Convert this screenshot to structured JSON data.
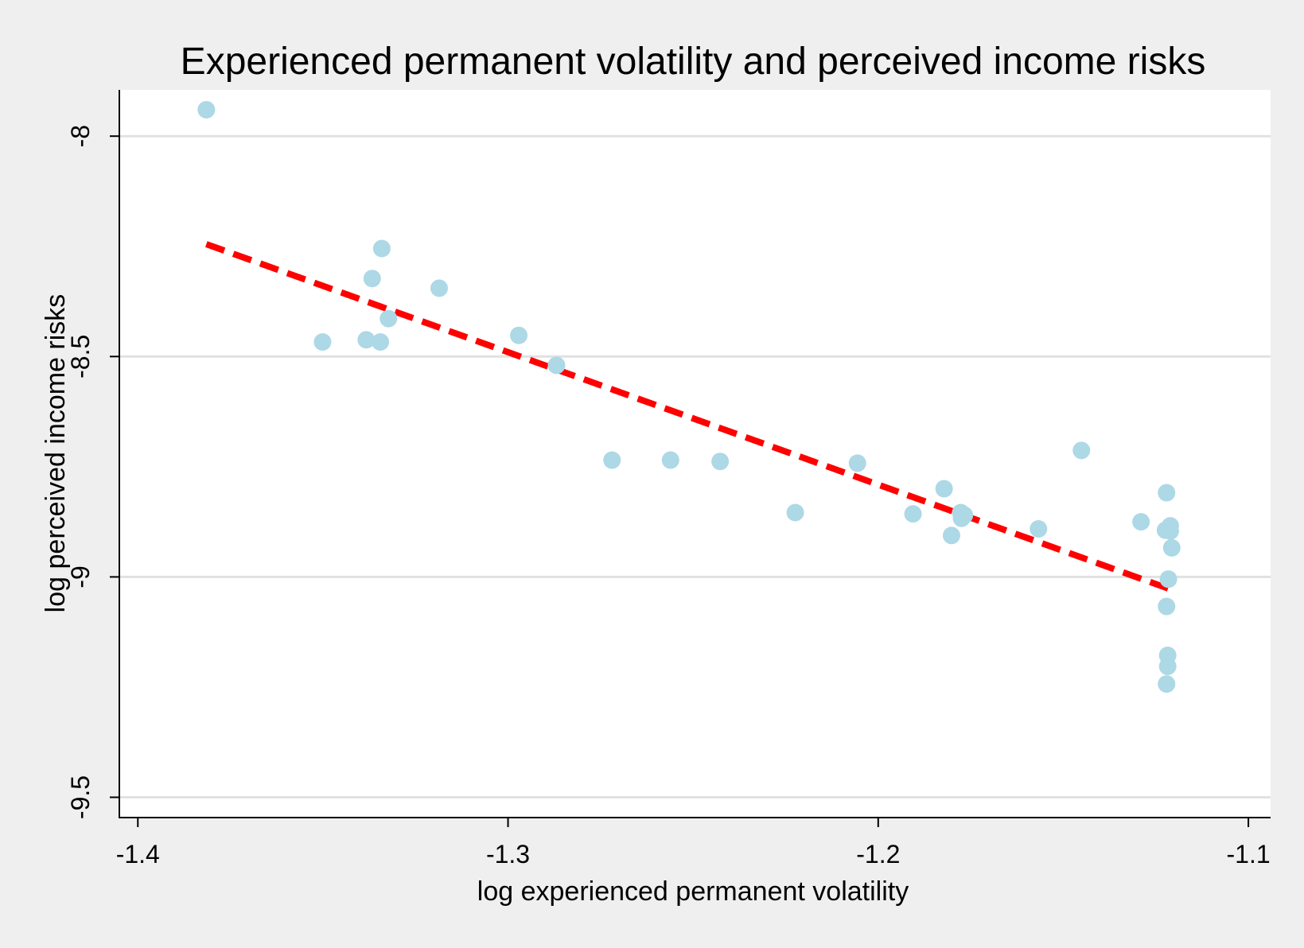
{
  "chart_data": {
    "type": "scatter",
    "title": "Experienced permanent volatility and perceived income risks",
    "xlabel": "log experienced permanent volatility",
    "ylabel": "log perceived income risks",
    "xlim": [
      -1.405,
      -1.094
    ],
    "ylim": [
      -9.546,
      -7.895
    ],
    "x_ticks": [
      -1.4,
      -1.3,
      -1.2,
      -1.1
    ],
    "x_tick_labels": [
      "-1.4",
      "-1.3",
      "-1.2",
      "-1.1"
    ],
    "y_ticks": [
      -8,
      -8.5,
      -9,
      -9.5
    ],
    "y_tick_labels": [
      "-8",
      "-8.5",
      "-9",
      "-9.5"
    ],
    "grid": "horizontal",
    "legend": "none",
    "colors": {
      "points": "#add8e6",
      "fit_line": "#ff0000",
      "plot_bg": "#ffffff",
      "page_bg": "#efefef",
      "grid": "#e1e1e1"
    },
    "series": [
      {
        "kind": "scatter",
        "points": [
          [
            -1.3815,
            -7.94
          ],
          [
            -1.3341,
            -8.255
          ],
          [
            -1.3367,
            -8.323
          ],
          [
            -1.3186,
            -8.345
          ],
          [
            -1.3323,
            -8.414
          ],
          [
            -1.3501,
            -8.467
          ],
          [
            -1.3383,
            -8.462
          ],
          [
            -1.3345,
            -8.467
          ],
          [
            -1.2971,
            -8.452
          ],
          [
            -1.2869,
            -8.52
          ],
          [
            -1.2719,
            -8.735
          ],
          [
            -1.2561,
            -8.735
          ],
          [
            -1.2427,
            -8.738
          ],
          [
            -1.2224,
            -8.854
          ],
          [
            -1.2056,
            -8.742
          ],
          [
            -1.1906,
            -8.857
          ],
          [
            -1.1822,
            -8.8
          ],
          [
            -1.1802,
            -8.906
          ],
          [
            -1.1777,
            -8.854
          ],
          [
            -1.1775,
            -8.867
          ],
          [
            -1.1767,
            -8.86
          ],
          [
            -1.1567,
            -8.891
          ],
          [
            -1.1451,
            -8.713
          ],
          [
            -1.129,
            -8.875
          ],
          [
            -1.1221,
            -8.809
          ],
          [
            -1.1224,
            -8.894
          ],
          [
            -1.1211,
            -8.884
          ],
          [
            -1.1211,
            -8.896
          ],
          [
            -1.1207,
            -8.934
          ],
          [
            -1.1216,
            -9.005
          ],
          [
            -1.1221,
            -9.067
          ],
          [
            -1.1218,
            -9.178
          ],
          [
            -1.1218,
            -9.203
          ],
          [
            -1.1221,
            -9.243
          ]
        ]
      },
      {
        "kind": "fitted_line",
        "style": "dashed",
        "points": [
          [
            -1.3815,
            -8.245
          ],
          [
            -1.1214,
            -9.027
          ]
        ]
      }
    ]
  }
}
